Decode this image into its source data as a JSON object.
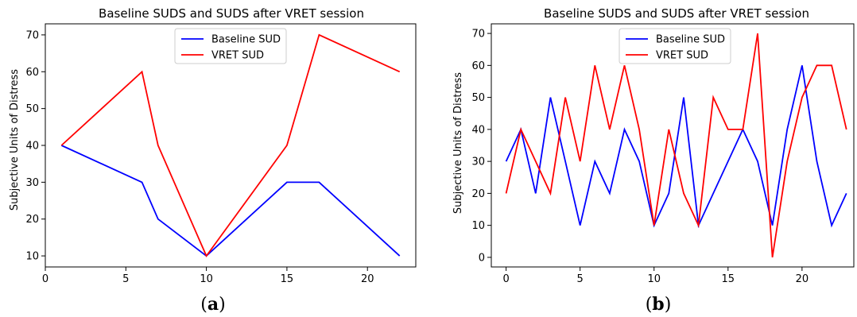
{
  "figure": {
    "panel_labels": [
      "(a)",
      "(b)"
    ]
  },
  "chart_data": [
    {
      "type": "line",
      "title": "Baseline SUDS and SUDS after VRET session",
      "xlabel": "",
      "ylabel": "Subjective Units of Distress",
      "xlim": [
        0,
        23
      ],
      "ylim": [
        7,
        73
      ],
      "xticks": [
        0,
        5,
        10,
        15,
        20
      ],
      "yticks": [
        10,
        20,
        30,
        40,
        50,
        60,
        70
      ],
      "legend_position": "upper center",
      "series": [
        {
          "name": "Baseline SUD",
          "color": "#0000ff",
          "x": [
            1,
            6,
            7,
            10,
            15,
            17,
            22
          ],
          "y": [
            40,
            30,
            20,
            10,
            30,
            30,
            10
          ]
        },
        {
          "name": "VRET SUD",
          "color": "#ff0000",
          "x": [
            1,
            6,
            7,
            10,
            15,
            17,
            22
          ],
          "y": [
            40,
            60,
            40,
            10,
            40,
            70,
            60
          ]
        }
      ]
    },
    {
      "type": "line",
      "title": "Baseline SUDS and SUDS after VRET session",
      "xlabel": "",
      "ylabel": "Subjective Units of Distress",
      "xlim": [
        -1,
        23.5
      ],
      "ylim": [
        -3,
        73
      ],
      "xticks": [
        0,
        5,
        10,
        15,
        20
      ],
      "yticks": [
        0,
        10,
        20,
        30,
        40,
        50,
        60,
        70
      ],
      "legend_position": "upper center",
      "series": [
        {
          "name": "Baseline SUD",
          "color": "#0000ff",
          "x": [
            0,
            1,
            2,
            3,
            4,
            5,
            6,
            7,
            8,
            9,
            10,
            11,
            12,
            13,
            14,
            15,
            16,
            17,
            18,
            19,
            20,
            21,
            22,
            23
          ],
          "y": [
            30,
            40,
            20,
            50,
            30,
            10,
            30,
            20,
            40,
            30,
            10,
            20,
            50,
            10,
            20,
            30,
            40,
            30,
            10,
            40,
            60,
            30,
            10,
            20
          ]
        },
        {
          "name": "VRET SUD",
          "color": "#ff0000",
          "x": [
            0,
            1,
            2,
            3,
            4,
            5,
            6,
            7,
            8,
            9,
            10,
            11,
            12,
            13,
            14,
            15,
            16,
            17,
            18,
            19,
            20,
            21,
            22,
            23
          ],
          "y": [
            20,
            40,
            30,
            20,
            50,
            30,
            60,
            40,
            60,
            40,
            10,
            40,
            20,
            10,
            50,
            40,
            40,
            70,
            0,
            30,
            50,
            60,
            60,
            40
          ]
        }
      ]
    }
  ]
}
